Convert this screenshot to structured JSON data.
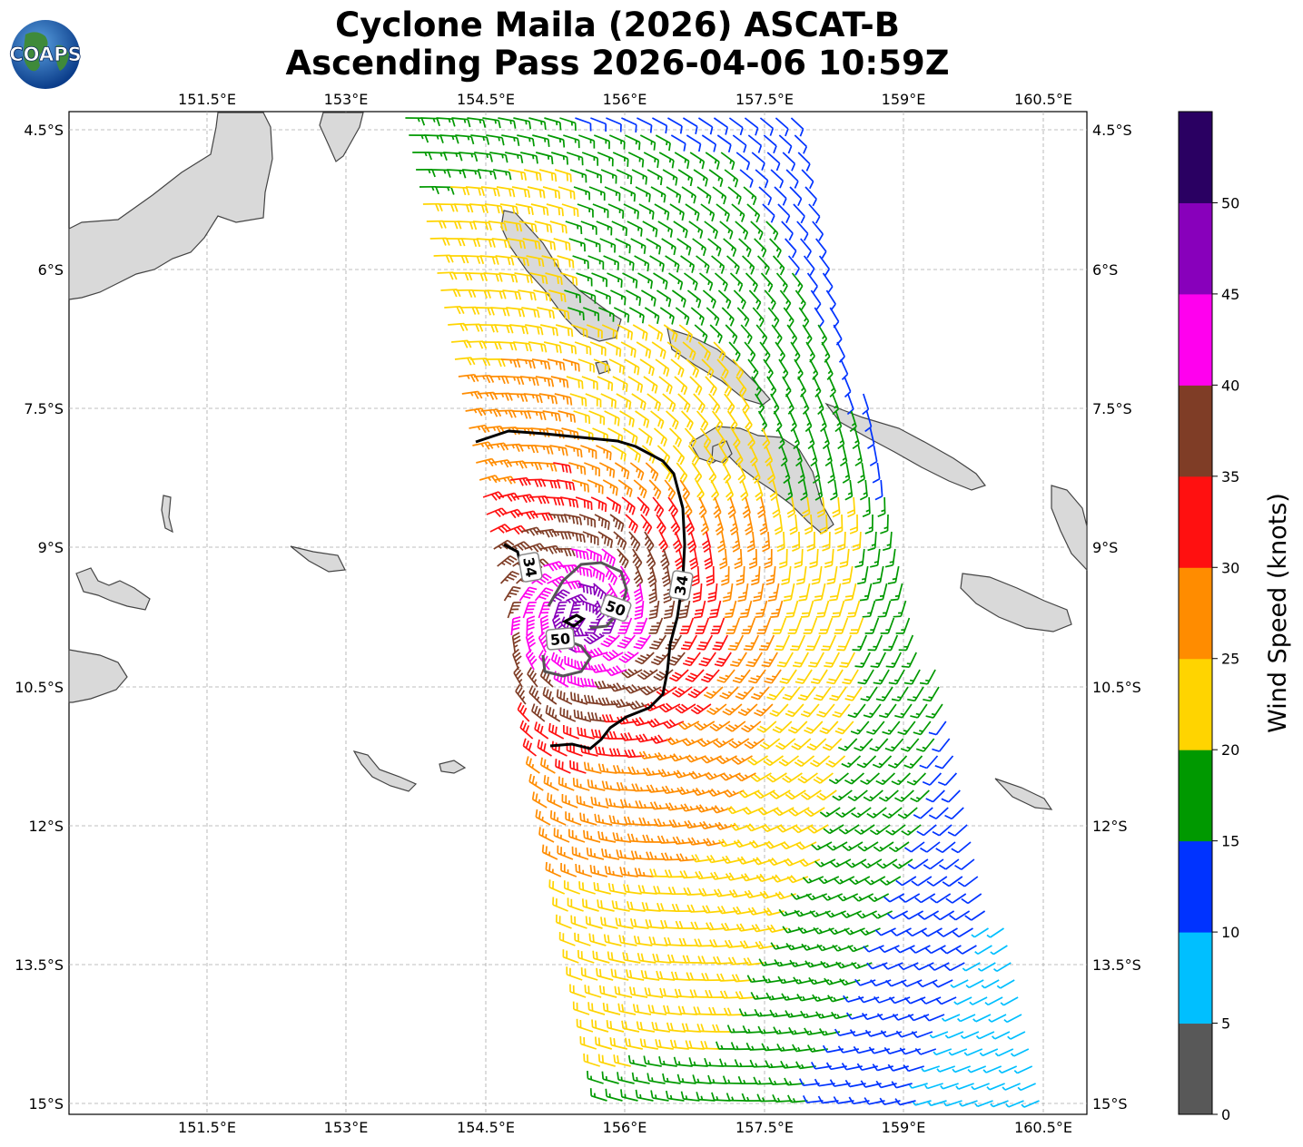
{
  "header": {
    "title_line1": "Cyclone Maila (2026) ASCAT-B",
    "title_line2": "Ascending Pass 2026-04-06 10:59Z",
    "logo_text": "COAPS"
  },
  "map": {
    "lon_ticks": [
      "151.5°E",
      "153°E",
      "154.5°E",
      "156°E",
      "157.5°E",
      "159°E",
      "160.5°E"
    ],
    "lat_ticks": [
      "4.5°S",
      "6°S",
      "7.5°S",
      "9°S",
      "10.5°S",
      "12°S",
      "13.5°S",
      "15°S"
    ],
    "contour_labels": [
      "34",
      "34",
      "50",
      "50"
    ]
  },
  "colorbar": {
    "label": "Wind Speed (knots)",
    "ticks": [
      "0",
      "5",
      "10",
      "15",
      "20",
      "25",
      "30",
      "35",
      "40",
      "45",
      "50"
    ],
    "colors": [
      "#585858",
      "#00bfff",
      "#0033ff",
      "#009900",
      "#ffd400",
      "#ff8c00",
      "#ff1010",
      "#7f3d26",
      "#ff00ee",
      "#8800bb",
      "#2a0062"
    ]
  }
}
